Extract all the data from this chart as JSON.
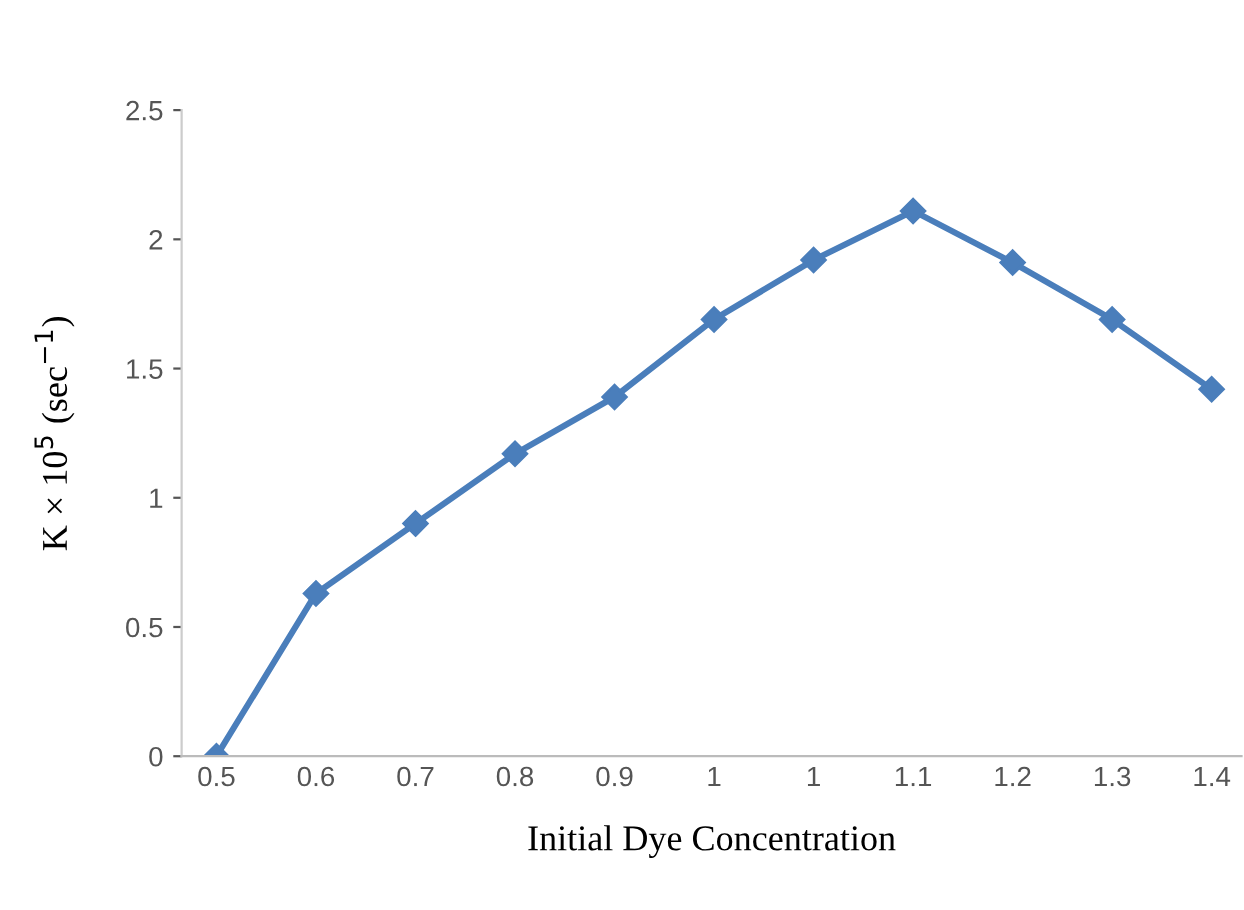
{
  "chart_data": {
    "type": "line",
    "xlabel": "Initial Dye Concentration",
    "ylabel": "K × 10$^{5}$ (sec$^{−1}$)",
    "categories": [
      "0.5",
      "0.6",
      "0.7",
      "0.8",
      "0.9",
      "1",
      "1",
      "1.1",
      "1.2",
      "1.3",
      "1.4"
    ],
    "series": [
      {
        "color": "#4a7ebb",
        "values": [
          0,
          0.63,
          0.9,
          1.17,
          1.39,
          1.69,
          1.92,
          2.11,
          1.91,
          1.69,
          1.42
        ]
      }
    ],
    "ylim": [
      0,
      2.5
    ],
    "yticks": [
      0,
      0.5,
      1,
      1.5,
      2,
      2.5
    ],
    "marker": "diamond",
    "line_style": "solid",
    "grid": false,
    "legend": false
  }
}
